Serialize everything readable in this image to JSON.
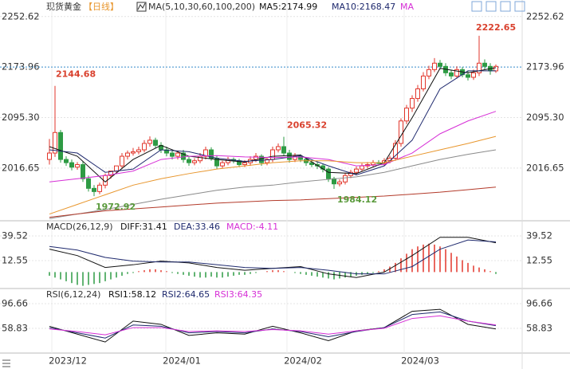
{
  "header": {
    "title": "现货黄金",
    "period": "【日线】"
  },
  "chart_data": [
    {
      "type": "candlestick",
      "title": "MA(5,10,30,60,100,200)",
      "open": [
        2030,
        2040,
        2072,
        2030,
        2025,
        2018,
        2022,
        2000,
        1985,
        1980,
        1990,
        2005,
        2012,
        2020,
        2035,
        2040,
        2042,
        2045,
        2055,
        2060,
        2052,
        2045,
        2040,
        2035,
        2040,
        2030,
        2025,
        2028,
        2035,
        2045,
        2032,
        2020,
        2025,
        2030,
        2028,
        2022,
        2025,
        2030,
        2035,
        2025,
        2030,
        2045,
        2050,
        2040,
        2030,
        2035,
        2030,
        2025,
        2022,
        2020,
        2015,
        2000,
        1992,
        1995,
        2005,
        2010,
        2015,
        2020,
        2022,
        2025,
        2024,
        2028,
        2032,
        2055,
        2090,
        2110,
        2125,
        2140,
        2160,
        2170,
        2180,
        2175,
        2165,
        2160,
        2170,
        2162,
        2158,
        2165,
        2180,
        2175,
        2168
      ],
      "high": [
        2062,
        2144.68,
        2076,
        2035,
        2030,
        2026,
        2027,
        2005,
        1990,
        1994,
        2008,
        2012,
        2018,
        2040,
        2044,
        2048,
        2050,
        2060,
        2066,
        2064,
        2057,
        2050,
        2045,
        2044,
        2045,
        2035,
        2032,
        2040,
        2050,
        2049,
        2036,
        2028,
        2034,
        2033,
        2031,
        2029,
        2035,
        2040,
        2038,
        2034,
        2050,
        2055,
        2065.32,
        2045,
        2040,
        2038,
        2034,
        2029,
        2026,
        2023,
        2018,
        2003,
        1999,
        2009,
        2014,
        2019,
        2024,
        2026,
        2029,
        2029,
        2032,
        2036,
        2060,
        2094,
        2115,
        2130,
        2146,
        2166,
        2176,
        2188,
        2185,
        2180,
        2170,
        2175,
        2174,
        2168,
        2170,
        2222.65,
        2186,
        2180,
        2178
      ],
      "low": [
        2022,
        2034,
        2025,
        2020,
        2013,
        2014,
        1995,
        1980,
        1972.92,
        1976,
        1985,
        2000,
        2008,
        2016,
        2030,
        2036,
        2038,
        2041,
        2050,
        2048,
        2040,
        2035,
        2030,
        2030,
        2025,
        2020,
        2021,
        2024,
        2030,
        2028,
        2015,
        2016,
        2021,
        2024,
        2018,
        2018,
        2020,
        2026,
        2020,
        2021,
        2026,
        2041,
        2036,
        2025,
        2026,
        2026,
        2020,
        2018,
        2015,
        2010,
        1995,
        1984.12,
        1988,
        1991,
        2001,
        2006,
        2011,
        2016,
        2018,
        2020,
        2020,
        2024,
        2028,
        2050,
        2085,
        2104,
        2120,
        2136,
        2155,
        2166,
        2170,
        2160,
        2155,
        2156,
        2158,
        2153,
        2154,
        2160,
        2170,
        2162,
        2165
      ],
      "close": [
        2040,
        2072,
        2030,
        2025,
        2018,
        2022,
        2000,
        1985,
        1980,
        1990,
        2005,
        2012,
        2020,
        2035,
        2040,
        2042,
        2045,
        2055,
        2060,
        2052,
        2045,
        2040,
        2035,
        2040,
        2030,
        2025,
        2028,
        2035,
        2045,
        2032,
        2020,
        2025,
        2030,
        2028,
        2022,
        2025,
        2030,
        2035,
        2025,
        2030,
        2045,
        2050,
        2040,
        2030,
        2035,
        2030,
        2025,
        2022,
        2020,
        2015,
        2000,
        1992,
        1995,
        2005,
        2010,
        2015,
        2020,
        2022,
        2025,
        2024,
        2028,
        2032,
        2055,
        2090,
        2110,
        2125,
        2140,
        2160,
        2170,
        2180,
        2175,
        2165,
        2160,
        2170,
        2162,
        2158,
        2165,
        2180,
        2175,
        2168,
        2175
      ],
      "up_color": "#e2362b",
      "down_color": "#2e9b44",
      "ylim": [
        1937,
        2266
      ],
      "yticks": [
        2252.62,
        2173.96,
        {
          "value": 2095.3,
          "label": "2095.30"
        },
        2016.65
      ],
      "line_x": [
        0,
        5,
        10,
        15,
        20,
        25,
        30,
        35,
        40,
        45,
        50,
        55,
        60,
        65,
        70,
        75,
        80
      ],
      "series": [
        {
          "name": "MA5:2174.99",
          "color": "#111111",
          "values": [
            2050,
            2035,
            1995,
            2030,
            2052,
            2035,
            2030,
            2026,
            2035,
            2037,
            2010,
            2008,
            2025,
            2095,
            2172,
            2165,
            2173
          ]
        },
        {
          "name": "MA10:2168.47",
          "color": "#1f2a6e",
          "values": [
            2045,
            2040,
            2010,
            2015,
            2045,
            2042,
            2032,
            2027,
            2030,
            2036,
            2020,
            2006,
            2020,
            2060,
            2140,
            2168,
            2168
          ]
        },
        {
          "name": "MA",
          "color": "#d62fd6",
          "values": [
            1995,
            2000,
            2005,
            2012,
            2030,
            2035,
            2036,
            2034,
            2033,
            2034,
            2030,
            2020,
            2022,
            2040,
            2070,
            2090,
            2105
          ]
        },
        {
          "color": "#e8962d",
          "values": [
            1945,
            1960,
            1975,
            1990,
            2000,
            2008,
            2015,
            2020,
            2025,
            2028,
            2028,
            2025,
            2025,
            2035,
            2045,
            2055,
            2066
          ]
        },
        {
          "color": "#8a8a8a",
          "values": [
            1938,
            1945,
            1952,
            1960,
            1968,
            1975,
            1982,
            1987,
            1990,
            1995,
            1999,
            2003,
            2010,
            2020,
            2030,
            2038,
            2045
          ]
        },
        {
          "color": "#b33a2a",
          "values": [
            1940,
            1945,
            1950,
            1953,
            1956,
            1959,
            1962,
            1964,
            1966,
            1967,
            1969,
            1971,
            1973,
            1976,
            1979,
            1983,
            1987
          ]
        }
      ],
      "annotations": [
        {
          "value": 2144.68,
          "color": "#d9412e"
        },
        {
          "value": 1972.92,
          "color": "#5a9a3c"
        },
        {
          "value": 2065.32,
          "color": "#d9412e"
        },
        {
          "value": 1984.12,
          "color": "#5a9a3c"
        },
        {
          "value": 2222.65,
          "color": "#d9412e"
        }
      ]
    },
    {
      "type": "macd",
      "title": "MACD(26,12,9)",
      "histogram_name": "MACD:-4.11",
      "histogram": [
        -4,
        -6,
        -8,
        -10,
        -12,
        -14,
        -15,
        -14,
        -13,
        -12,
        -10,
        -8,
        -6,
        -4,
        -2,
        -1,
        1,
        2,
        3,
        3,
        2,
        1,
        -1,
        -2,
        -3,
        -4,
        -5,
        -6,
        -6,
        -5,
        -6,
        -6,
        -5,
        -4,
        -3,
        -3,
        -2,
        -1,
        0,
        1,
        2,
        2,
        1,
        0,
        -1,
        -2,
        -3,
        -4,
        -5,
        -6,
        -7,
        -8,
        -7,
        -6,
        -5,
        -4,
        -3,
        -2,
        -1,
        1,
        3,
        6,
        10,
        15,
        20,
        25,
        28,
        30,
        31,
        30,
        28,
        25,
        21,
        17,
        13,
        10,
        7,
        5,
        3,
        1,
        -2
      ],
      "histogram_name_color": "#d62fd6",
      "up_color": "#e2362b",
      "down_color": "#2e9b44",
      "ylim": [
        -16.2,
        53.4
      ],
      "yticks": [
        39.52,
        12.55
      ],
      "line_x": [
        0,
        5,
        10,
        15,
        20,
        25,
        30,
        35,
        40,
        45,
        50,
        55,
        60,
        65,
        70,
        75,
        80
      ],
      "series": [
        {
          "name": "DIFF:31.41",
          "color": "#111111",
          "values": [
            25,
            18,
            5,
            8,
            12,
            10,
            5,
            2,
            4,
            6,
            -2,
            -6,
            0,
            18,
            38,
            38,
            32
          ]
        },
        {
          "name": "DEA:33.46",
          "color": "#1f2a6e",
          "values": [
            28,
            24,
            16,
            12,
            11,
            11,
            8,
            5,
            4,
            5,
            2,
            -2,
            -2,
            6,
            25,
            35,
            33
          ]
        }
      ]
    },
    {
      "type": "line",
      "title": "RSI(6,12,24)",
      "ylim": [
        24.7,
        116.2
      ],
      "yticks": [
        96.66,
        58.83
      ],
      "line_x": [
        0,
        5,
        10,
        15,
        20,
        25,
        30,
        35,
        40,
        45,
        50,
        55,
        60,
        65,
        70,
        75,
        80
      ],
      "series": [
        {
          "name": "RSI1:58.12",
          "color": "#111111",
          "values": [
            62,
            50,
            38,
            70,
            65,
            48,
            52,
            50,
            62,
            52,
            40,
            55,
            60,
            85,
            88,
            65,
            58
          ]
        },
        {
          "name": "RSI2:64.65",
          "color": "#1f2a6e",
          "values": [
            60,
            52,
            44,
            64,
            62,
            52,
            54,
            52,
            58,
            54,
            46,
            54,
            60,
            80,
            84,
            70,
            63
          ]
        },
        {
          "name": "RSI3:64.35",
          "color": "#d62fd6",
          "values": [
            58,
            54,
            49,
            60,
            60,
            54,
            55,
            54,
            57,
            55,
            50,
            55,
            59,
            74,
            78,
            70,
            64
          ]
        }
      ],
      "x_labels": [
        "2023/12",
        "2024/01",
        "2024/02",
        "2024/03"
      ]
    }
  ]
}
